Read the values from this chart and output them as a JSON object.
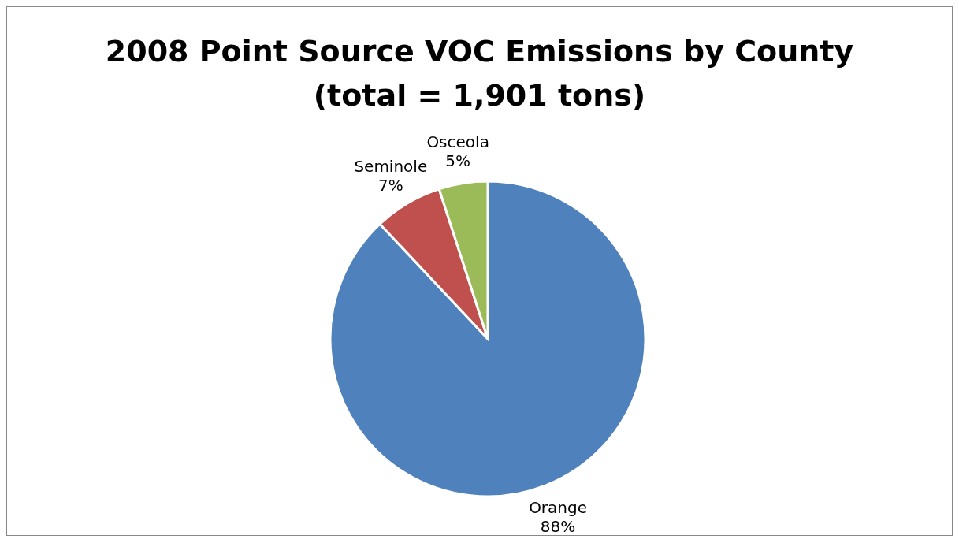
{
  "chart_data": {
    "type": "pie",
    "title": "2008 Point Source VOC Emissions by County",
    "subtitle": "(total = 1,901 tons)",
    "categories": [
      "Orange",
      "Seminole",
      "Osceola"
    ],
    "values": [
      88,
      7,
      5
    ],
    "colors": [
      "#4f81bd",
      "#c0504d",
      "#9bbb59"
    ],
    "value_labels": [
      "88%",
      "7%",
      "5%"
    ],
    "legend": false
  }
}
